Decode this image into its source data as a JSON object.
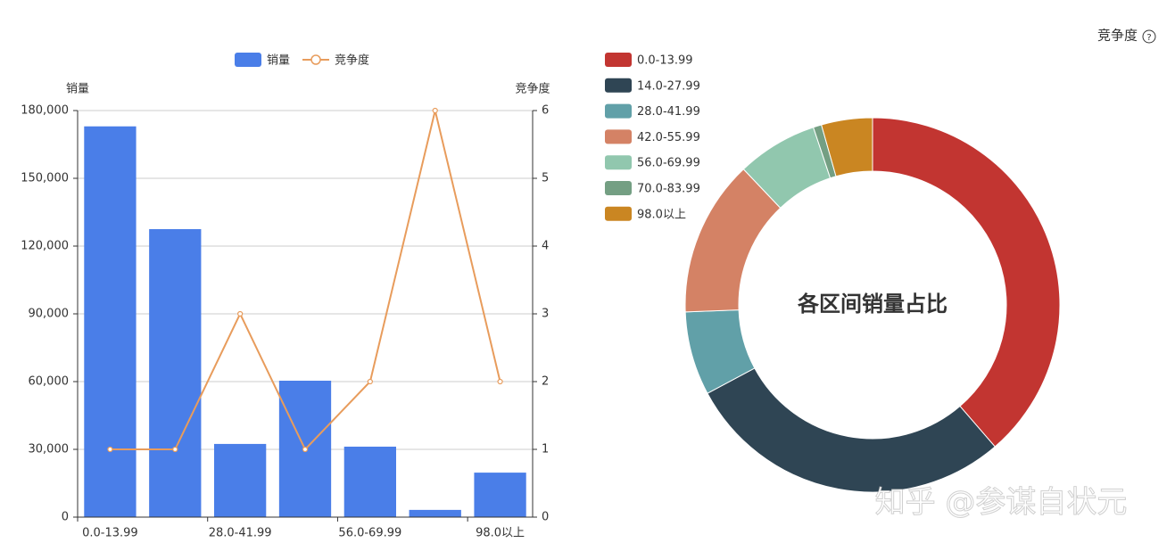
{
  "header": {
    "label": "竞争度"
  },
  "watermark": "知乎 @参谋自状元",
  "chart_data": [
    {
      "type": "bar-line",
      "y_axis_label": "销量",
      "y2_axis_label": "竞争度",
      "categories": [
        "0.0-13.99",
        null,
        "28.0-41.99",
        null,
        "56.0-69.99",
        null,
        "98.0以上"
      ],
      "series": [
        {
          "name": "销量",
          "type": "bar",
          "color": "#4a7ee8",
          "values": [
            173000,
            127500,
            32400,
            60400,
            31200,
            3200,
            19700
          ]
        },
        {
          "name": "竞争度",
          "type": "line",
          "axis": "y2",
          "color": "#e89c5c",
          "values": [
            1,
            1,
            3,
            1,
            2,
            6,
            2
          ]
        }
      ],
      "ylim": [
        0,
        180000
      ],
      "yticks": [
        0,
        {
          "value": 30000,
          "label": "30,000"
        },
        {
          "value": 60000,
          "label": "60,000"
        },
        {
          "value": 90000,
          "label": "90,000"
        },
        {
          "value": 120000,
          "label": "120,000"
        },
        {
          "value": 150000,
          "label": "150,000"
        },
        {
          "value": 180000,
          "label": "180,000"
        }
      ],
      "y2lim": [
        0,
        6
      ],
      "y2ticks": [
        0,
        1,
        2,
        3,
        4,
        5,
        6
      ],
      "grid": true
    },
    {
      "type": "donut",
      "title": "各区间销量占比",
      "categories": [
        "0.0-13.99",
        "14.0-27.99",
        "28.0-41.99",
        "42.0-55.99",
        "56.0-69.99",
        "70.0-83.99",
        "98.0以上"
      ],
      "values": [
        173000,
        127500,
        32400,
        60400,
        31200,
        3200,
        19700
      ],
      "colors": [
        "#c23531",
        "#2f4554",
        "#61a0a8",
        "#d48265",
        "#91c7ae",
        "#749f83",
        "#ca8622"
      ]
    }
  ]
}
